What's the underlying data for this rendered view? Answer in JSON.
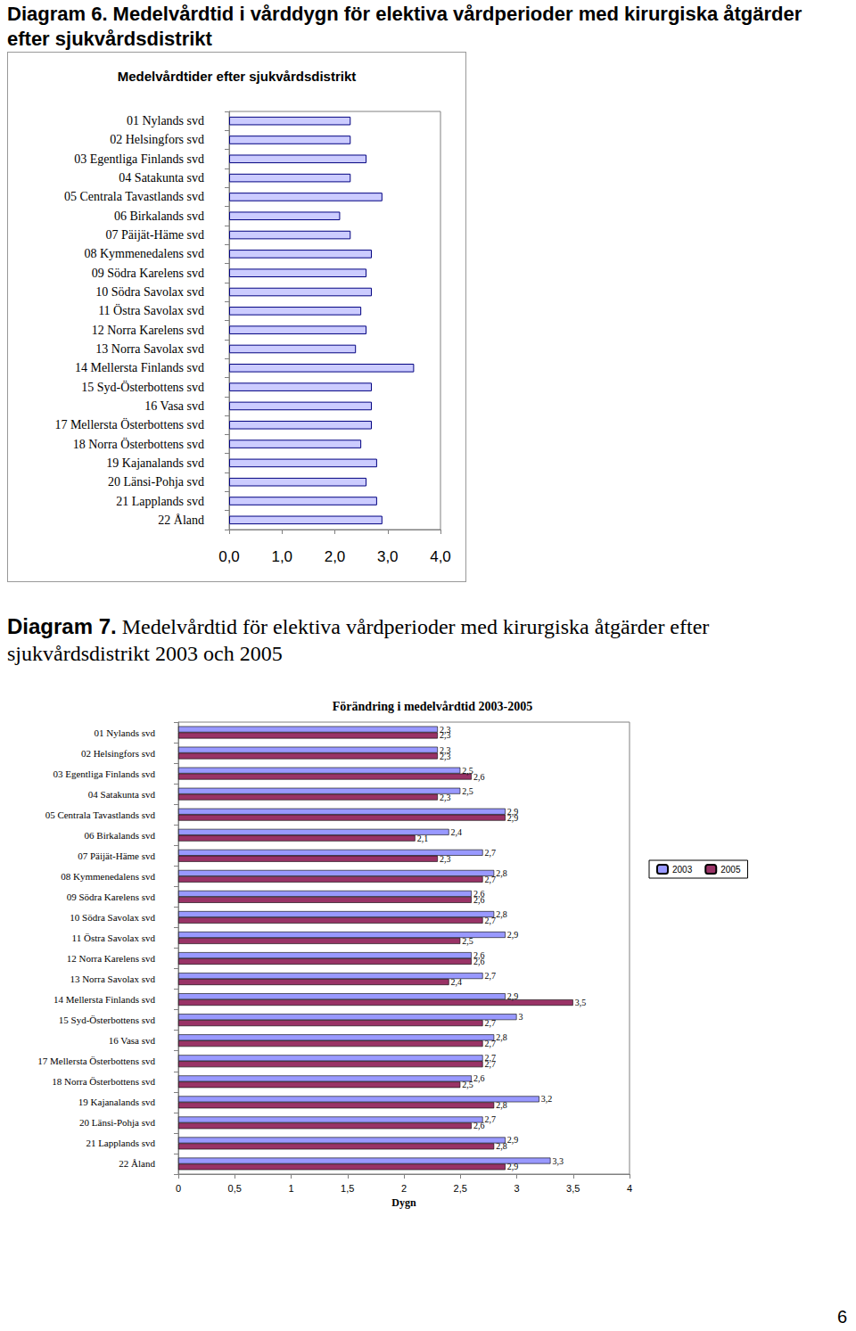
{
  "page_number": "6",
  "chart_data": [
    {
      "type": "bar",
      "orientation": "horizontal",
      "title": "Diagram 6. Medelvårdtid i vårddygn för elektiva vårdperioder med kirurgiska åtgärder efter sjukvårdsdistrikt",
      "subtitle": "Medelvårdtider efter sjukvårdsdistrikt",
      "categories": [
        "01 Nylands svd",
        "02 Helsingfors svd",
        "03 Egentliga Finlands svd",
        "04 Satakunta svd",
        "05 Centrala Tavastlands svd",
        "06 Birkalands svd",
        "07 Päijät-Häme svd",
        "08 Kymmenedalens svd",
        "09 Södra Karelens svd",
        "10 Södra Savolax svd",
        "11 Östra Savolax svd",
        "12 Norra Karelens svd",
        "13 Norra Savolax svd",
        "14 Mellersta Finlands svd",
        "15 Syd-Österbottens svd",
        "16 Vasa svd",
        "17 Mellersta Österbottens svd",
        "18 Norra Österbottens svd",
        "19 Kajanalands svd",
        "20 Länsi-Pohja svd",
        "21 Lapplands svd",
        "22 Åland"
      ],
      "values": [
        2.3,
        2.3,
        2.6,
        2.3,
        2.9,
        2.1,
        2.3,
        2.7,
        2.6,
        2.7,
        2.5,
        2.6,
        2.4,
        3.5,
        2.7,
        2.7,
        2.7,
        2.5,
        2.8,
        2.6,
        2.8,
        2.9
      ],
      "color": "#ccccff",
      "xlim": [
        0,
        4
      ],
      "xticks": [
        {
          "value": 0,
          "label": "0,0"
        },
        {
          "value": 1,
          "label": "1,0"
        },
        {
          "value": 2,
          "label": "2,0"
        },
        {
          "value": 3,
          "label": "3,0"
        },
        {
          "value": 4,
          "label": "4,0"
        }
      ],
      "grid": false
    },
    {
      "type": "bar",
      "orientation": "horizontal",
      "title": "Diagram 7. Medelvårdtid för elektiva vårdperioder med kirurgiska åtgärder efter sjukvårdsdistrikt 2003 och 2005",
      "subtitle": "Förändring i medelvårdtid 2003-2005",
      "xlabel": "Dygn",
      "categories": [
        "01 Nylands svd",
        "02 Helsingfors svd",
        "03 Egentliga Finlands svd",
        "04 Satakunta svd",
        "05 Centrala Tavastlands svd",
        "06 Birkalands svd",
        "07 Päijät-Häme svd",
        "08 Kymmenedalens svd",
        "09 Södra Karelens svd",
        "10 Södra Savolax svd",
        "11 Östra Savolax svd",
        "12 Norra Karelens svd",
        "13 Norra Savolax svd",
        "14 Mellersta Finlands svd",
        "15 Syd-Österbottens svd",
        "16 Vasa svd",
        "17 Mellersta Österbottens svd",
        "18 Norra Österbottens svd",
        "19 Kajanalands svd",
        "20 Länsi-Pohja svd",
        "21 Lapplands svd",
        "22 Åland"
      ],
      "series": [
        {
          "name": "2003",
          "color": "#9999ff",
          "values": [
            2.3,
            2.3,
            2.5,
            2.5,
            2.9,
            2.4,
            2.7,
            2.8,
            2.6,
            2.8,
            2.9,
            2.6,
            2.7,
            2.9,
            3,
            2.8,
            2.7,
            2.6,
            3.2,
            2.7,
            2.9,
            3.3
          ],
          "value_labels": [
            "2,3",
            "2,3",
            "2,5",
            "2,5",
            "2,9",
            "2,4",
            "2,7",
            "2,8",
            "2,6",
            "2,8",
            "2,9",
            "2,6",
            "2,7",
            "2,9",
            "3",
            "2,8",
            "2,7",
            "2,6",
            "3,2",
            "2,7",
            "2,9",
            "3,3"
          ]
        },
        {
          "name": "2005",
          "color": "#993366",
          "values": [
            2.3,
            2.3,
            2.6,
            2.3,
            2.9,
            2.1,
            2.3,
            2.7,
            2.6,
            2.7,
            2.5,
            2.6,
            2.4,
            3.5,
            2.7,
            2.7,
            2.7,
            2.5,
            2.8,
            2.6,
            2.8,
            2.9
          ],
          "value_labels": [
            "2,3",
            "2,3",
            "2,6",
            "2,3",
            "2,9",
            "2,1",
            "2,3",
            "2,7",
            "2,6",
            "2,7",
            "2,5",
            "2,6",
            "2,4",
            "3,5",
            "2,7",
            "2,7",
            "2,7",
            "2,5",
            "2,8",
            "2,6",
            "2,8",
            "2,9"
          ]
        }
      ],
      "xlim": [
        0,
        4
      ],
      "xticks": [
        0,
        {
          "value": 0.5,
          "label": "0,5"
        },
        1,
        {
          "value": 1.5,
          "label": "1,5"
        },
        2,
        {
          "value": 2.5,
          "label": "2,5"
        },
        3,
        {
          "value": 3.5,
          "label": "3,5"
        },
        4
      ],
      "legend": "right",
      "data_labels": true,
      "grid": false
    }
  ]
}
